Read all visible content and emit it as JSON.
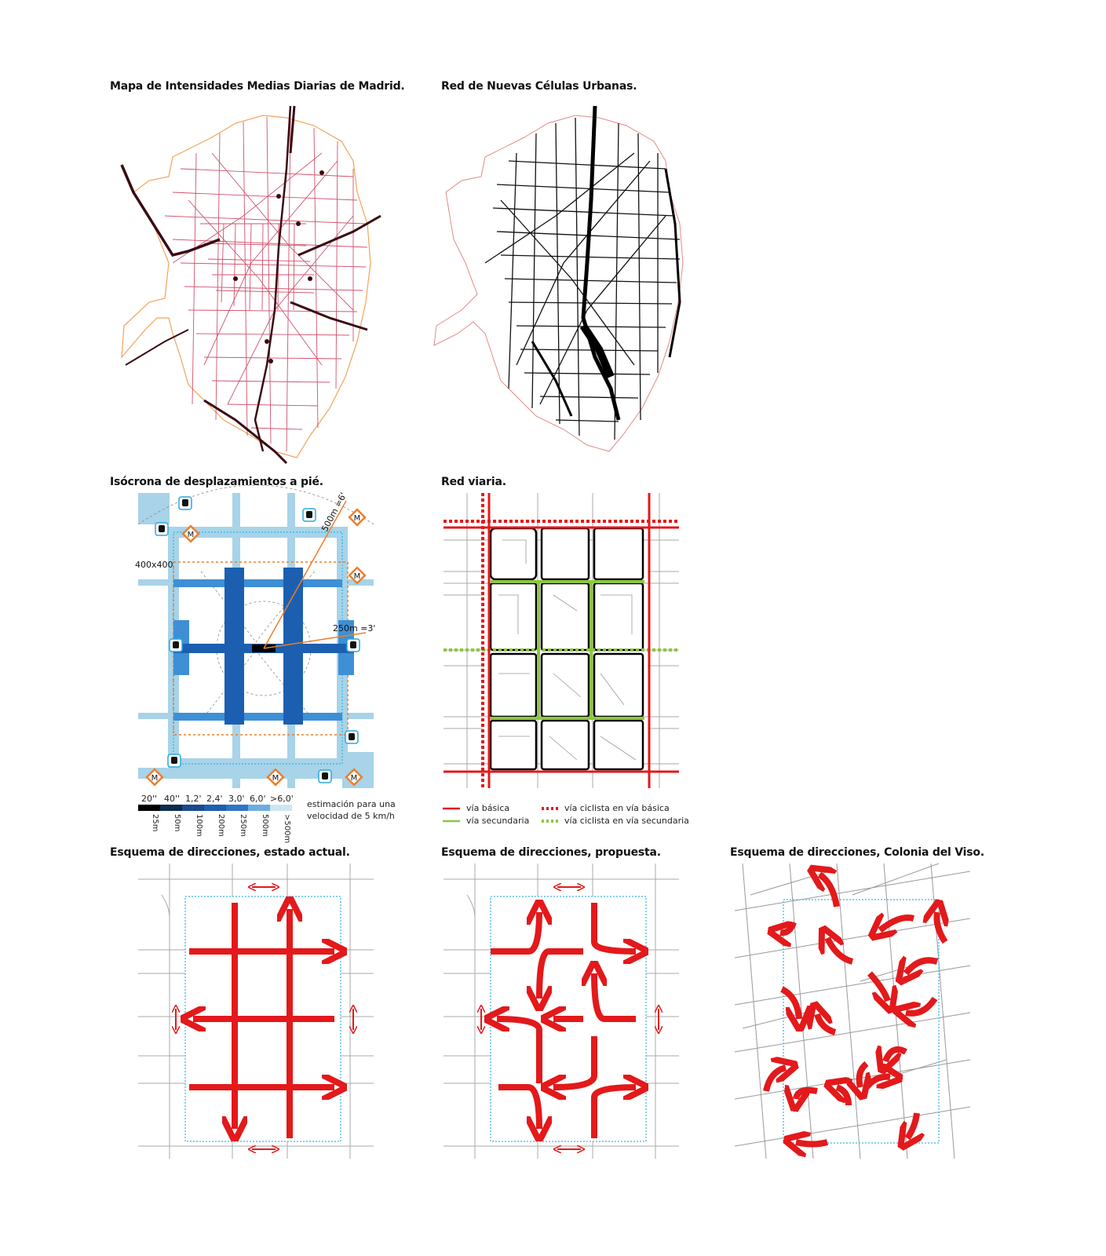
{
  "colors": {
    "accent_red": "#e3191b",
    "green": "#8dc63f",
    "blue_dark": "#1c5fb0",
    "blue_mid": "#3e8fd6",
    "blue_light": "#a8d3e8",
    "orange": "#ef7d2a",
    "map_red": "#c2183b"
  },
  "titles": {
    "imd": "Mapa de Intensidades Medias Diarias de Madrid.",
    "cells": "Red de Nuevas Células Urbanas.",
    "isochrone": "Isócrona de desplazamientos a pié.",
    "road": "Red viaria.",
    "dir_current": "Esquema de direcciones, estado actual.",
    "dir_proposal": "Esquema de direcciones, propuesta.",
    "dir_viso": "Esquema de direcciones, Colonia del Viso."
  },
  "isochrone": {
    "label_block": "400x400",
    "label_500": "500m =6'",
    "label_250": "250m =3'",
    "metro_letter": "M",
    "time_labels": [
      "20''",
      "40''",
      "1,2'",
      "2,4'",
      "3,0'",
      "6,0'",
      ">6,0'"
    ],
    "distance_labels": [
      "25m",
      "50m",
      "100m",
      "200m",
      "250m",
      "500m",
      ">500m"
    ],
    "scale_colors": [
      "#000000",
      "#0d2b4f",
      "#1a4a8a",
      "#1c5fb0",
      "#2e75c7",
      "#6aaee0",
      "#cde6f2"
    ],
    "note_line1": "estimación para una",
    "note_line2": "velocidad de 5 km/h"
  },
  "road_legend": {
    "basic": "vía básica",
    "secondary": "vía secundaria",
    "bike_basic": "vía ciclista en vía básica",
    "bike_secondary": "vía ciclista en vía secundaria"
  }
}
